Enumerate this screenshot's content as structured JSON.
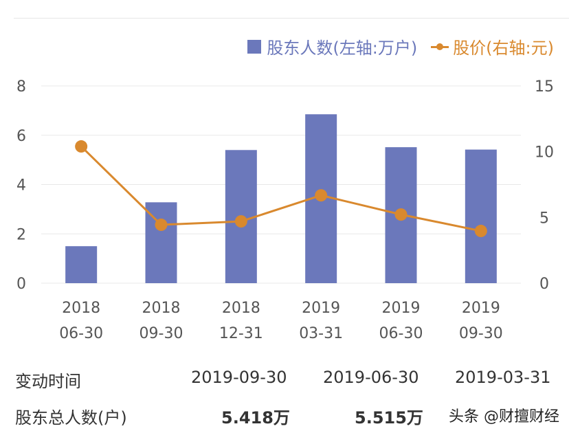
{
  "chart_data": {
    "type": "bar",
    "categories": [
      [
        "2018",
        "06-30"
      ],
      [
        "2018",
        "09-30"
      ],
      [
        "2018",
        "12-31"
      ],
      [
        "2019",
        "03-31"
      ],
      [
        "2019",
        "06-30"
      ],
      [
        "2019",
        "09-30"
      ]
    ],
    "series": [
      {
        "name": "股东人数(左轴:万户)",
        "type": "bar",
        "axis": "left",
        "color": "#6b78bb",
        "values": [
          1.5,
          3.28,
          5.4,
          6.85,
          5.515,
          5.418
        ]
      },
      {
        "name": "股价(右轴:元)",
        "type": "line",
        "axis": "right",
        "color": "#d9892e",
        "values": [
          10.4,
          4.44,
          4.7,
          6.68,
          5.22,
          3.97
        ]
      }
    ],
    "y_left": {
      "range": [
        0,
        8
      ],
      "ticks": [
        "0",
        "2",
        "4",
        "6",
        "8"
      ]
    },
    "y_right": {
      "range": [
        0,
        15
      ],
      "ticks": [
        "0",
        "5",
        "10",
        "15"
      ]
    },
    "grid": true,
    "legend_position": "top-right"
  },
  "table": {
    "header_label": "变动时间",
    "dates": [
      "2019-09-30",
      "2019-06-30",
      "2019-03-31"
    ],
    "row_label": "股东总人数(户)",
    "values": [
      "5.418万",
      "5.515万",
      ""
    ]
  },
  "watermark": "头条 @财擅财经"
}
